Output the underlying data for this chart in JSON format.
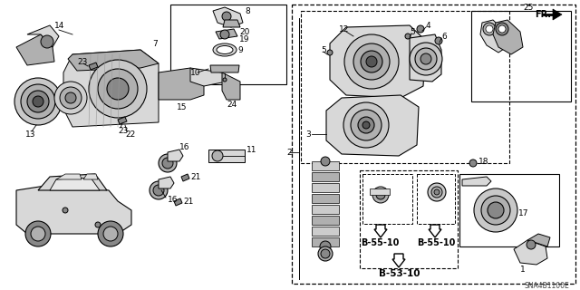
{
  "background_color": "#ffffff",
  "diagram_code": "SNA4B1100E",
  "fr_label": "FR.",
  "ref_b5510": "B-55-10",
  "ref_b5310": "B-53-10",
  "gray_light": "#d8d8d8",
  "gray_mid": "#b0b0b0",
  "gray_dark": "#888888",
  "gray_darker": "#555555"
}
